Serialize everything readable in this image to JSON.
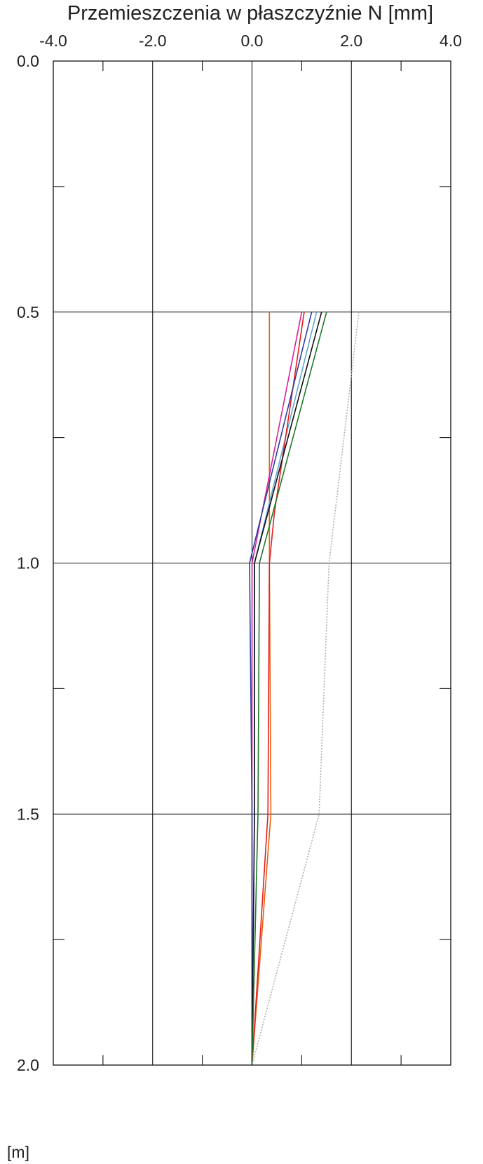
{
  "chart_data": {
    "type": "line",
    "orientation": "profile",
    "title": "Przemieszczenia w płaszczyźnie N [mm]",
    "x_axis": {
      "position": "top",
      "range": [
        -4.0,
        4.0
      ],
      "tick_labels": [
        "-4.0",
        "-2.0",
        "0.0",
        "2.0",
        "4.0"
      ],
      "minor_ticks": [
        -3.0,
        -1.0,
        1.0,
        3.0
      ]
    },
    "y_axis": {
      "inverted": true,
      "range": [
        0.0,
        2.0
      ],
      "tick_labels": [
        "0.0",
        "0.5",
        "1.0",
        "1.5",
        "2.0"
      ],
      "minor_ticks": [
        0.25,
        0.75,
        1.25,
        1.75
      ],
      "unit_label": "[m]"
    },
    "grid": true,
    "series": [
      {
        "color": "#e8600a",
        "points": [
          [
            0.35,
            0.5
          ],
          [
            0.35,
            0.85
          ],
          [
            0.35,
            1.0
          ],
          [
            0.38,
            1.5
          ],
          [
            0.0,
            2.0
          ]
        ]
      },
      {
        "color": "#5fa8d3",
        "points": [
          [
            1.3,
            0.5
          ],
          [
            0.05,
            1.0
          ],
          [
            0.05,
            1.5
          ],
          [
            0.0,
            2.0
          ]
        ]
      },
      {
        "color": "#d6249a",
        "points": [
          [
            1.0,
            0.5
          ],
          [
            0.0,
            1.0
          ],
          [
            0.0,
            1.5
          ],
          [
            0.0,
            2.0
          ]
        ]
      },
      {
        "color": "#e41e1e",
        "points": [
          [
            1.05,
            0.5
          ],
          [
            0.45,
            0.9
          ],
          [
            0.35,
            1.0
          ],
          [
            0.32,
            1.5
          ],
          [
            0.0,
            2.0
          ]
        ]
      },
      {
        "color": "#2f3d9c",
        "points": [
          [
            1.2,
            0.5
          ],
          [
            -0.05,
            1.0
          ],
          [
            0.0,
            1.5
          ],
          [
            0.0,
            2.0
          ]
        ]
      },
      {
        "color": "#111111",
        "points": [
          [
            1.4,
            0.5
          ],
          [
            0.05,
            1.0
          ],
          [
            0.05,
            1.5
          ],
          [
            0.0,
            2.0
          ]
        ]
      },
      {
        "color": "#1e7a2a",
        "points": [
          [
            1.5,
            0.5
          ],
          [
            0.15,
            1.0
          ],
          [
            0.12,
            1.5
          ],
          [
            0.0,
            2.0
          ]
        ]
      },
      {
        "color": "#b0b0b0",
        "points": [
          [
            2.15,
            0.5
          ],
          [
            1.55,
            1.0
          ],
          [
            1.35,
            1.5
          ],
          [
            0.0,
            2.0
          ]
        ]
      }
    ]
  }
}
